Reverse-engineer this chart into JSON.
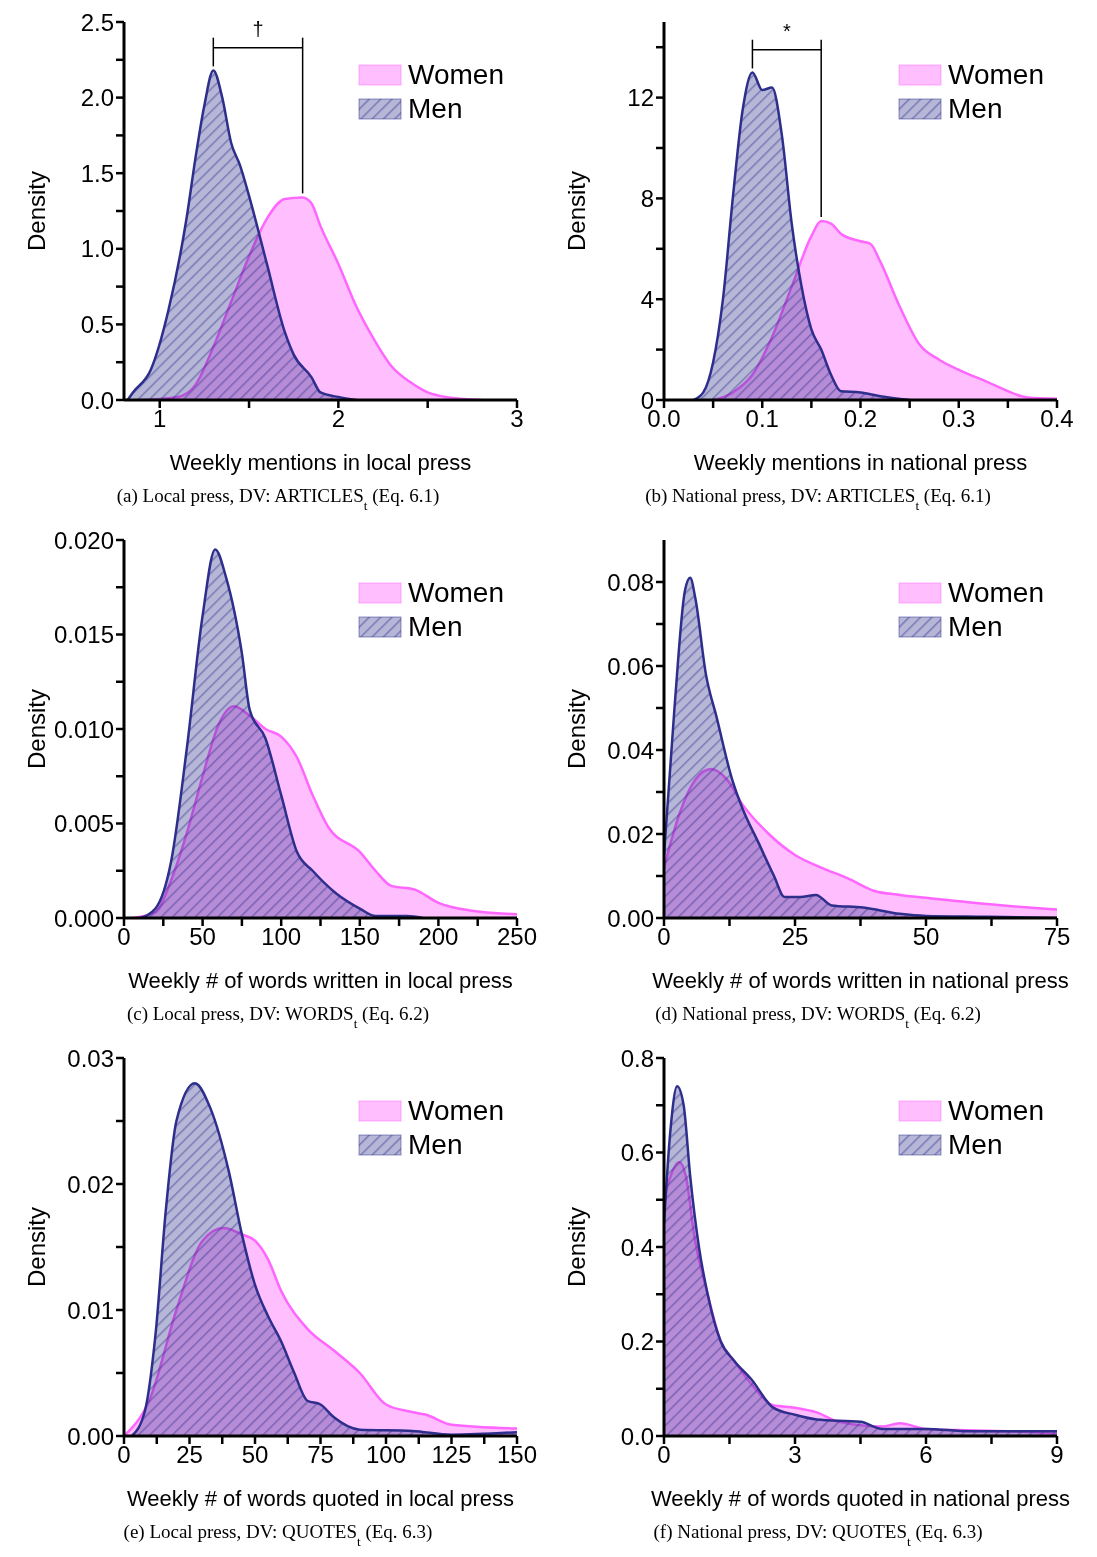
{
  "chart_data": [
    {
      "type": "area",
      "title": "(a) Local press, DV: ARTICLES$_{t}$ (Eq. 6.1)",
      "xlabel": "Weekly mentions in local press",
      "ylabel": "Density",
      "legend": "top right",
      "annotations": [
        "†"
      ],
      "xlim": [
        0.8,
        3
      ],
      "xticks": [
        1,
        {
          "value": 1.5,
          "label": null
        },
        2,
        {
          "value": 2.5,
          "label": null
        },
        3
      ],
      "ylim": [
        0,
        2.5
      ],
      "yticks": [
        {
          "value": 0,
          "label": "0.0"
        },
        {
          "value": 0.25,
          "label": null
        },
        0.5,
        {
          "value": 0.75,
          "label": null
        },
        {
          "value": 1,
          "label": "1.0"
        },
        {
          "value": 1.25,
          "label": null
        },
        1.5,
        {
          "value": 1.75,
          "label": null
        },
        {
          "value": 2,
          "label": "2.0"
        },
        {
          "value": 2.25,
          "label": null
        },
        2.5
      ],
      "series": [
        {
          "name": "Women",
          "color": "#ff66ff",
          "x": [
            0.9,
            1.1,
            1.2,
            1.3,
            1.4,
            1.5,
            1.6,
            1.7,
            1.8,
            1.85,
            1.9,
            2.0,
            2.1,
            2.2,
            2.3,
            2.4,
            2.5,
            2.6,
            2.8
          ],
          "values": [
            0,
            0.02,
            0.1,
            0.35,
            0.65,
            0.95,
            1.2,
            1.33,
            1.34,
            1.3,
            1.15,
            0.9,
            0.62,
            0.4,
            0.22,
            0.12,
            0.05,
            0.02,
            0
          ]
        },
        {
          "name": "Men",
          "color": "#2e2e8c",
          "x": [
            0.82,
            0.85,
            0.95,
            1.05,
            1.15,
            1.2,
            1.25,
            1.3,
            1.35,
            1.4,
            1.45,
            1.5,
            1.6,
            1.7,
            1.75,
            1.85,
            1.9,
            2.0,
            2.1
          ],
          "values": [
            0,
            0.05,
            0.2,
            0.6,
            1.2,
            1.6,
            1.95,
            2.18,
            2.0,
            1.7,
            1.55,
            1.35,
            0.9,
            0.45,
            0.3,
            0.15,
            0.05,
            0.02,
            0
          ]
        }
      ]
    },
    {
      "type": "area",
      "title": "(b) National press, DV: ARTICLES$_{t}$ (Eq. 6.1)",
      "xlabel": "Weekly mentions in national press",
      "ylabel": "Density",
      "legend": "top right",
      "annotations": [
        "*"
      ],
      "xlim": [
        0,
        0.4
      ],
      "xticks": [
        {
          "value": 0,
          "label": "0.0"
        },
        {
          "value": 0.05,
          "label": null
        },
        0.1,
        {
          "value": 0.15,
          "label": null
        },
        0.2,
        {
          "value": 0.25,
          "label": null
        },
        0.3,
        {
          "value": 0.35,
          "label": null
        },
        0.4
      ],
      "ylim": [
        0,
        15
      ],
      "yticks": [
        0,
        {
          "value": 2,
          "label": null
        },
        4,
        {
          "value": 6,
          "label": null
        },
        8,
        {
          "value": 10,
          "label": null
        },
        12,
        {
          "value": 14,
          "label": null
        }
      ],
      "series": [
        {
          "name": "Women",
          "color": "#ff66ff",
          "x": [
            0.05,
            0.07,
            0.09,
            0.11,
            0.13,
            0.15,
            0.16,
            0.17,
            0.18,
            0.2,
            0.21,
            0.22,
            0.24,
            0.26,
            0.28,
            0.3,
            0.33,
            0.35,
            0.37,
            0.4
          ],
          "values": [
            0,
            0.3,
            1,
            2.5,
            4.5,
            6.5,
            7.1,
            7.0,
            6.6,
            6.3,
            6.2,
            5.5,
            3.7,
            2.2,
            1.6,
            1.2,
            0.7,
            0.35,
            0.1,
            0.05
          ]
        },
        {
          "name": "Men",
          "color": "#2e2e8c",
          "x": [
            0.03,
            0.04,
            0.05,
            0.06,
            0.07,
            0.08,
            0.09,
            0.1,
            0.11,
            0.12,
            0.13,
            0.14,
            0.15,
            0.16,
            0.17,
            0.18,
            0.2,
            0.22,
            0.25
          ],
          "values": [
            0,
            0.3,
            1.5,
            4,
            8,
            11.5,
            13.0,
            12.3,
            12.4,
            10.5,
            7,
            4.5,
            2.8,
            2,
            1,
            0.35,
            0.3,
            0.15,
            0
          ]
        }
      ]
    },
    {
      "type": "area",
      "title": "(c) Local press, DV: WORDS$_{t}$ (Eq. 6.2)",
      "xlabel": "Weekly # of words written in local press",
      "ylabel": "Density",
      "legend": "top right",
      "xlim": [
        0,
        250
      ],
      "xticks": [
        0,
        {
          "value": 25,
          "label": null
        },
        50,
        {
          "value": 75,
          "label": null
        },
        100,
        {
          "value": 125,
          "label": null
        },
        150,
        {
          "value": 175,
          "label": null
        },
        200,
        {
          "value": 225,
          "label": null
        },
        250
      ],
      "ylim": [
        0,
        0.02
      ],
      "yticks": [
        {
          "value": 0,
          "label": "0.000"
        },
        {
          "value": 0.0025,
          "label": null
        },
        0.005,
        {
          "value": 0.0075,
          "label": null
        },
        {
          "value": 0.01,
          "label": "0.010"
        },
        {
          "value": 0.0125,
          "label": null
        },
        0.015,
        {
          "value": 0.0175,
          "label": null
        },
        {
          "value": 0.02,
          "label": "0.020"
        }
      ],
      "series": [
        {
          "name": "Women",
          "color": "#ff66ff",
          "x": [
            5,
            20,
            30,
            40,
            50,
            60,
            70,
            80,
            90,
            100,
            110,
            120,
            130,
            150,
            160,
            170,
            185,
            200,
            220,
            250
          ],
          "values": [
            0,
            0.0003,
            0.002,
            0.0045,
            0.0075,
            0.0102,
            0.0112,
            0.0107,
            0.01,
            0.0096,
            0.0085,
            0.0065,
            0.0048,
            0.0035,
            0.0025,
            0.0017,
            0.0015,
            0.0008,
            0.0004,
            0.0002
          ]
        },
        {
          "name": "Men",
          "color": "#2e2e8c",
          "x": [
            10,
            20,
            30,
            40,
            50,
            58,
            65,
            75,
            80,
            90,
            100,
            110,
            120,
            135,
            150,
            160,
            180,
            190
          ],
          "values": [
            0,
            0.0005,
            0.003,
            0.009,
            0.016,
            0.0195,
            0.018,
            0.014,
            0.011,
            0.0095,
            0.0065,
            0.0035,
            0.0025,
            0.0013,
            0.0005,
            0.0001,
            0.0001,
            0
          ]
        }
      ]
    },
    {
      "type": "area",
      "title": "(d) National press, DV: WORDS$_{t}$ (Eq. 6.2)",
      "xlabel": "Weekly # of words written in national press",
      "ylabel": "Density",
      "legend": "top right",
      "xlim": [
        0,
        75
      ],
      "xticks": [
        0,
        {
          "value": 12.5,
          "label": null
        },
        25,
        {
          "value": 37.5,
          "label": null
        },
        50,
        {
          "value": 62.5,
          "label": null
        },
        75
      ],
      "ylim": [
        0,
        0.09
      ],
      "yticks": [
        {
          "value": 0,
          "label": "0.00"
        },
        {
          "value": 0.01,
          "label": null
        },
        {
          "value": 0.02,
          "label": "0.02"
        },
        {
          "value": 0.03,
          "label": null
        },
        {
          "value": 0.04,
          "label": "0.04"
        },
        {
          "value": 0.05,
          "label": null
        },
        {
          "value": 0.06,
          "label": "0.06"
        },
        {
          "value": 0.07,
          "label": null
        },
        {
          "value": 0.08,
          "label": "0.08"
        }
      ],
      "series": [
        {
          "name": "Women",
          "color": "#ff66ff",
          "x": [
            0,
            3,
            6,
            9,
            12,
            15,
            20,
            25,
            30,
            35,
            40,
            45,
            50,
            60,
            75
          ],
          "values": [
            0.012,
            0.025,
            0.033,
            0.0355,
            0.033,
            0.027,
            0.02,
            0.015,
            0.012,
            0.0095,
            0.0065,
            0.0055,
            0.0048,
            0.0035,
            0.002
          ]
        },
        {
          "name": "Men",
          "color": "#2e2e8c",
          "x": [
            0,
            2,
            4,
            5,
            6,
            8,
            10,
            13,
            15,
            18,
            21,
            23,
            26,
            29,
            32,
            38,
            45,
            50,
            62,
            75
          ],
          "values": [
            0.015,
            0.05,
            0.078,
            0.081,
            0.076,
            0.058,
            0.048,
            0.033,
            0.026,
            0.018,
            0.01,
            0.005,
            0.005,
            0.0055,
            0.003,
            0.0025,
            0.001,
            0.0005,
            0.0003,
            0
          ]
        }
      ]
    },
    {
      "type": "area",
      "title": "(e) Local press, DV: QUOTES$_{t}$ (Eq. 6.3)",
      "xlabel": "Weekly # of words quoted in local press",
      "ylabel": "Density",
      "legend": "top right",
      "xlim": [
        0,
        150
      ],
      "xticks": [
        0,
        {
          "value": 12.5,
          "label": null
        },
        25,
        {
          "value": 37.5,
          "label": null
        },
        50,
        {
          "value": 62.5,
          "label": null
        },
        75,
        {
          "value": 87.5,
          "label": null
        },
        100,
        {
          "value": 112.5,
          "label": null
        },
        125,
        {
          "value": 137.5,
          "label": null
        },
        150
      ],
      "ylim": [
        0,
        0.03
      ],
      "yticks": [
        {
          "value": 0,
          "label": "0.00"
        },
        {
          "value": 0.005,
          "label": null
        },
        {
          "value": 0.01,
          "label": "0.01"
        },
        {
          "value": 0.015,
          "label": null
        },
        {
          "value": 0.02,
          "label": "0.02"
        },
        {
          "value": 0.025,
          "label": null
        },
        {
          "value": 0.03,
          "label": "0.03"
        }
      ],
      "series": [
        {
          "name": "Women",
          "color": "#ff66ff",
          "x": [
            0,
            10,
            20,
            30,
            38,
            45,
            50,
            55,
            60,
            70,
            80,
            90,
            100,
            110,
            115,
            125,
            150
          ],
          "values": [
            0,
            0.003,
            0.01,
            0.0155,
            0.0165,
            0.016,
            0.0155,
            0.014,
            0.0115,
            0.0085,
            0.0068,
            0.005,
            0.0025,
            0.0019,
            0.0017,
            0.0009,
            0.0006
          ]
        },
        {
          "name": "Men",
          "color": "#2e2e8c",
          "x": [
            3,
            8,
            12,
            16,
            20,
            27,
            33,
            40,
            45,
            50,
            55,
            60,
            65,
            70,
            75,
            80,
            90,
            110,
            125,
            150
          ],
          "values": [
            0,
            0.002,
            0.008,
            0.018,
            0.025,
            0.028,
            0.026,
            0.021,
            0.016,
            0.012,
            0.0095,
            0.0075,
            0.005,
            0.0028,
            0.0025,
            0.0015,
            0.0005,
            0.0004,
            0.0001,
            0.0003
          ]
        }
      ]
    },
    {
      "type": "area",
      "title": "(f) National press, DV: QUOTES$_{t}$ (Eq. 6.3)",
      "xlabel": "Weekly # of words quoted in national press",
      "ylabel": "Density",
      "legend": "top right",
      "xlim": [
        0,
        9
      ],
      "xticks": [
        0,
        {
          "value": 1.5,
          "label": null
        },
        3,
        {
          "value": 4.5,
          "label": null
        },
        6,
        {
          "value": 7.5,
          "label": null
        },
        9
      ],
      "ylim": [
        0,
        0.8
      ],
      "yticks": [
        {
          "value": 0,
          "label": "0.0"
        },
        {
          "value": 0.1,
          "label": null
        },
        0.2,
        {
          "value": 0.3,
          "label": null
        },
        0.4,
        {
          "value": 0.5,
          "label": null
        },
        0.6,
        {
          "value": 0.7,
          "label": null
        },
        0.8
      ],
      "series": [
        {
          "name": "Women",
          "color": "#ff66ff",
          "x": [
            0,
            0.15,
            0.35,
            0.5,
            0.7,
            1.0,
            1.3,
            1.6,
            2,
            2.5,
            3,
            3.5,
            4,
            5,
            5.4,
            6,
            7,
            8,
            9
          ],
          "values": [
            0.5,
            0.55,
            0.58,
            0.55,
            0.42,
            0.3,
            0.2,
            0.16,
            0.11,
            0.065,
            0.06,
            0.05,
            0.03,
            0.02,
            0.027,
            0.015,
            0.012,
            0.01,
            0.005
          ]
        },
        {
          "name": "Men",
          "color": "#2e2e8c",
          "x": [
            0,
            0.15,
            0.3,
            0.45,
            0.6,
            0.8,
            1.0,
            1.3,
            1.6,
            2,
            2.5,
            3,
            3.5,
            4.5,
            5,
            6,
            7,
            8,
            9
          ],
          "values": [
            0.45,
            0.65,
            0.74,
            0.7,
            0.55,
            0.4,
            0.3,
            0.2,
            0.16,
            0.12,
            0.06,
            0.045,
            0.035,
            0.03,
            0.015,
            0.015,
            0.01,
            0.01,
            0.01
          ]
        }
      ]
    }
  ]
}
